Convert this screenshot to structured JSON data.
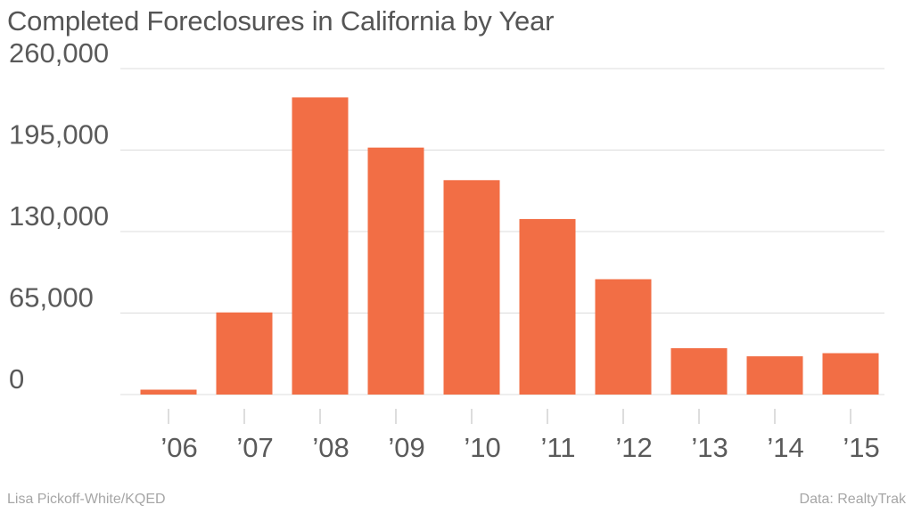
{
  "title": "Completed Foreclosures in California by Year",
  "credit": "Lisa Pickoff-White/KQED",
  "source": "Data: RealtyTrak",
  "colors": {
    "bar": "#f26e45",
    "grid": "#dcdcdc",
    "text": "#5a5a5a"
  },
  "chart_data": {
    "type": "bar",
    "title": "Completed Foreclosures in California by Year",
    "xlabel": "",
    "ylabel": "",
    "categories": [
      "’06",
      "’07",
      "’08",
      "’09",
      "’10",
      "’11",
      "’12",
      "’13",
      "’14",
      "’15"
    ],
    "values": [
      3900,
      65500,
      237000,
      197000,
      171000,
      140000,
      92000,
      37000,
      30500,
      33000
    ],
    "ylim": [
      0,
      260000
    ],
    "yticks": [
      0,
      65000,
      130000,
      195000,
      260000
    ],
    "ytick_labels": [
      "0",
      "65,000",
      "130,000",
      "195,000",
      "260,000"
    ],
    "grid": true,
    "legend": "none"
  }
}
